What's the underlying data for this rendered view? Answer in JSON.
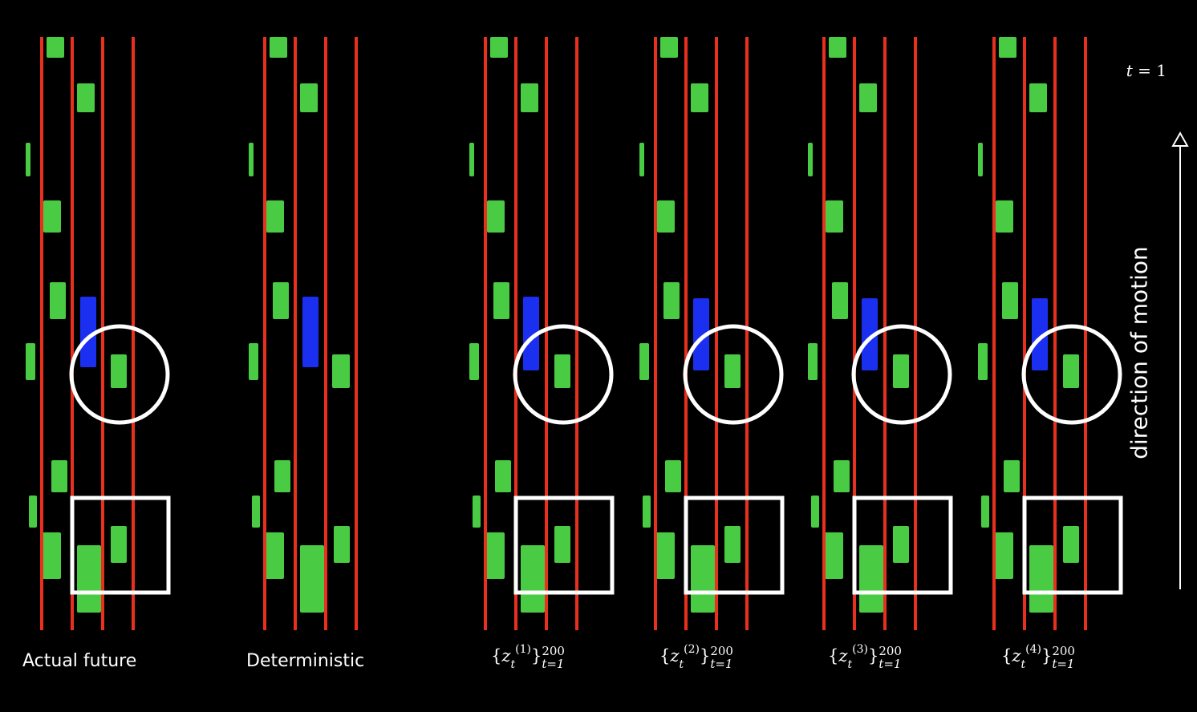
{
  "panels": [
    {
      "key": "actual",
      "label": "Actual future",
      "type": "text"
    },
    {
      "key": "deterministic",
      "label": "Deterministic",
      "type": "text"
    },
    {
      "key": "sample1",
      "type": "math",
      "sample_index": "1",
      "range_top": "200",
      "range_bottom": "t=1"
    },
    {
      "key": "sample2",
      "type": "math",
      "sample_index": "2",
      "range_top": "200",
      "range_bottom": "t=1"
    },
    {
      "key": "sample3",
      "type": "math",
      "sample_index": "3",
      "range_top": "200",
      "range_bottom": "t=1"
    },
    {
      "key": "sample4",
      "type": "math",
      "sample_index": "4",
      "range_top": "200",
      "range_bottom": "t=1"
    }
  ],
  "time_label": {
    "var": "t",
    "value": "= 1"
  },
  "motion_label": "direction of motion",
  "colors": {
    "background": "#000000",
    "lane_line": "#e8301f",
    "other_car": "#4fdc4a",
    "ego_car": "#1b2ff0",
    "highlight": "#ffffff"
  }
}
